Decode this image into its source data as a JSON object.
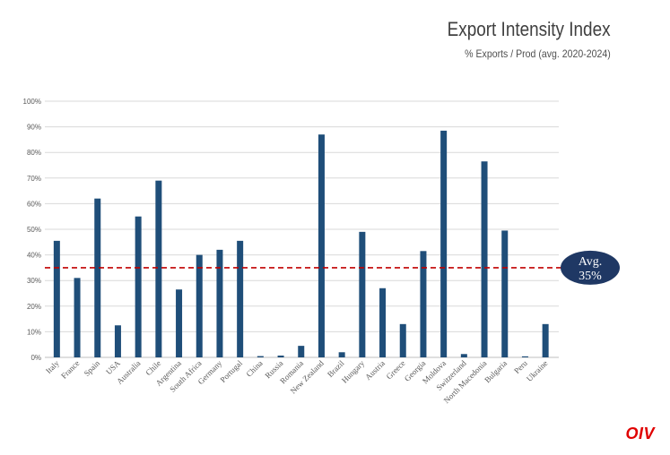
{
  "header": {
    "title": "Export Intensity Index",
    "subtitle": "% Exports / Prod (avg. 2020-2024)"
  },
  "logo_text": "OIV",
  "colors": {
    "bar": "#1f4e79",
    "average_line": "#c00000",
    "badge": "#1f3864",
    "grid": "#d9d9d9"
  },
  "chart_data": {
    "type": "bar",
    "title": "Export Intensity Index",
    "subtitle": "% Exports / Prod (avg. 2020-2024)",
    "xlabel": "",
    "ylabel": "",
    "ylim": [
      0,
      100
    ],
    "y_ticks": [
      "0%",
      "10%",
      "20%",
      "30%",
      "40%",
      "50%",
      "60%",
      "70%",
      "80%",
      "90%",
      "100%"
    ],
    "grid": true,
    "categories": [
      "Italy",
      "France",
      "Spain",
      "USA",
      "Australia",
      "Chile",
      "Argentina",
      "South Africa",
      "Germany",
      "Portugal",
      "China",
      "Russia",
      "Romania",
      "New Zealand",
      "Brazil",
      "Hungary",
      "Austria",
      "Greece",
      "Georgia",
      "Moldova",
      "Switzerland",
      "North Macedonia",
      "Bulgaria",
      "Peru",
      "Ukraine"
    ],
    "values": [
      45.5,
      31,
      62,
      12.5,
      55,
      69,
      26.5,
      40,
      42,
      45.5,
      0.5,
      0.7,
      4.5,
      87,
      2,
      49,
      27,
      13,
      41.5,
      88.5,
      1.3,
      76.5,
      49.5,
      0.4,
      13
    ],
    "average": {
      "value": 35,
      "label_line1": "Avg.",
      "label_line2": "35%"
    }
  }
}
